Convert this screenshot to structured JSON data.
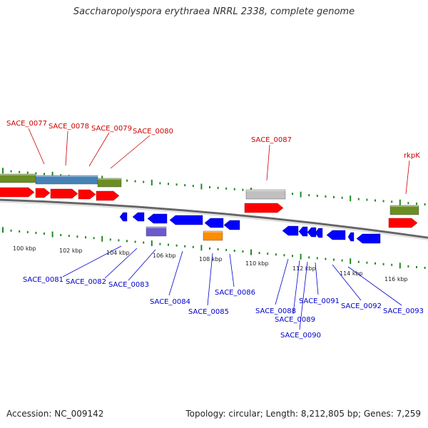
{
  "title": "Saccharopolyspora erythraea NRRL 2338, complete genome",
  "accession_text": "Accession: NC_009142",
  "topology_text": "Topology: circular; Length: 8,212,805 bp; Genes: 7,259",
  "colors": {
    "forward": "#ff0000",
    "reverse": "#0000ff",
    "top_label": "#cc0000",
    "bottom_label": "#0000cc",
    "tick": "#228822",
    "green": "#6b8e23",
    "steel": "#4682b4",
    "gray": "#c0c0c0",
    "purple": "#6a5acd",
    "orange": "#ff8c00"
  },
  "top_labels": [
    "SACE_0077",
    "SACE_0078",
    "SACE_0079",
    "SACE_0080",
    "SACE_0087",
    "rkpK"
  ],
  "bottom_labels": [
    "SACE_0081",
    "SACE_0082",
    "SACE_0083",
    "SACE_0084",
    "SACE_0085",
    "SACE_0086",
    "SACE_0088",
    "SACE_0089",
    "SACE_0090",
    "SACE_0091",
    "SACE_0092",
    "SACE_0093"
  ],
  "scale_labels": [
    "100 kbp",
    "102 kbp",
    "104 kbp",
    "106 kbp",
    "108 kbp",
    "110 kbp",
    "112 kbp",
    "114 kbp",
    "116 kbp"
  ]
}
